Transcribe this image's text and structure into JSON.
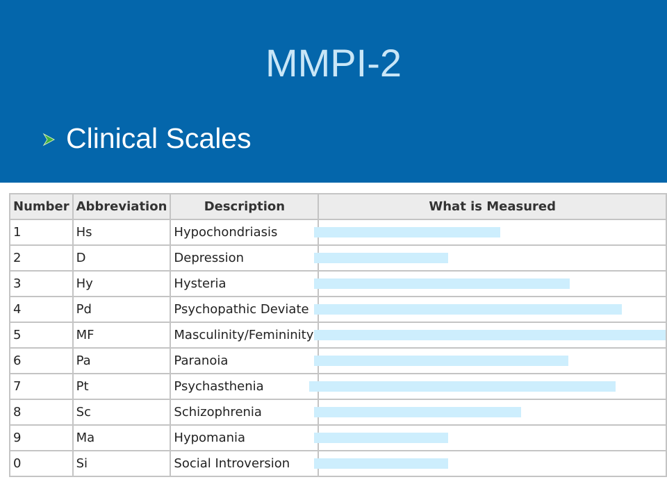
{
  "title": "MMPI-2",
  "bullet": "Clinical Scales",
  "table": {
    "headers": [
      "Number",
      "Abbreviation",
      "Description",
      "What is Measured"
    ],
    "rows": [
      [
        "1",
        "Hs",
        "Hypochondriasis"
      ],
      [
        "2",
        "D",
        "Depression"
      ],
      [
        "3",
        "Hy",
        "Hysteria"
      ],
      [
        "4",
        "Pd",
        "Psychopathic Deviate"
      ],
      [
        "5",
        "MF",
        "Masculinity/Femininity"
      ],
      [
        "6",
        "Pa",
        "Paranoia"
      ],
      [
        "7",
        "Pt",
        "Psychasthenia"
      ],
      [
        "8",
        "Sc",
        "Schizophrenia"
      ],
      [
        "9",
        "Ma",
        "Hypomania"
      ],
      [
        "0",
        "Si",
        "Social Introversion"
      ]
    ]
  }
}
